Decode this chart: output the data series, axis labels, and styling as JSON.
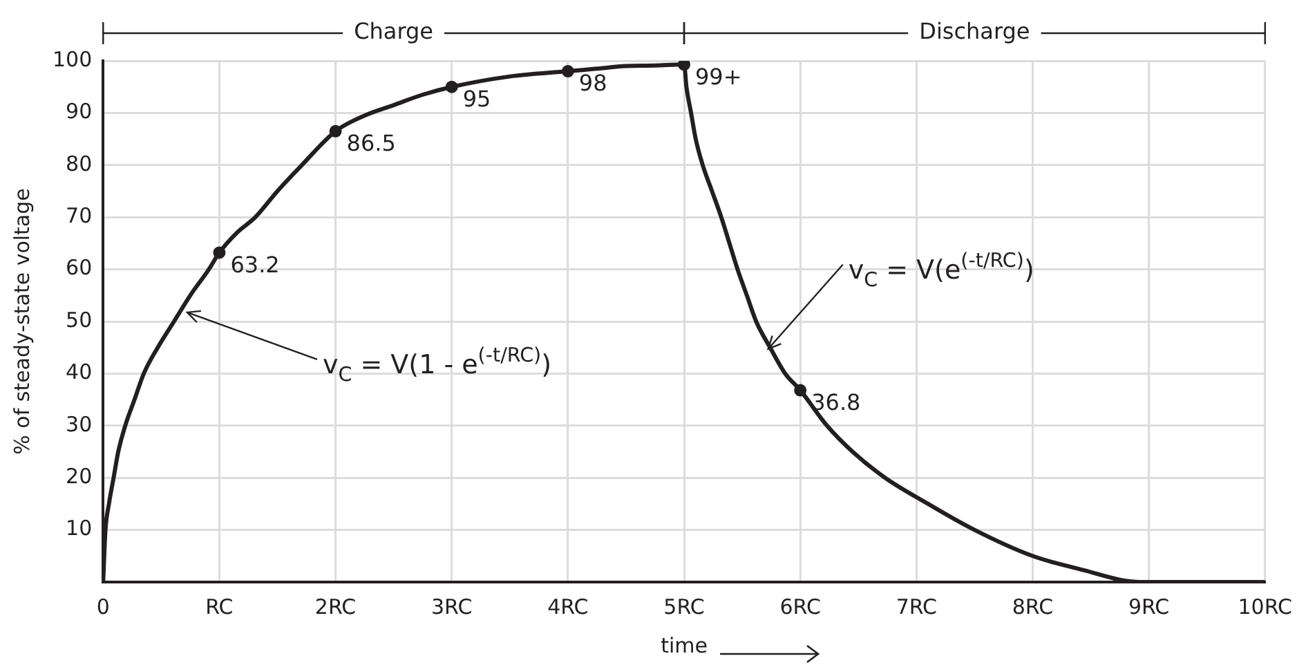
{
  "chart_data": {
    "type": "line",
    "xlabel": "time",
    "ylabel": "% of steady-state voltage",
    "xlim": [
      0,
      10
    ],
    "xticks": [
      0,
      {
        "value": 1,
        "label": "RC"
      },
      {
        "value": 2,
        "label": "2RC"
      },
      {
        "value": 3,
        "label": "3RC"
      },
      {
        "value": 4,
        "label": "4RC"
      },
      {
        "value": 5,
        "label": "5RC"
      },
      {
        "value": 6,
        "label": "6RC"
      },
      {
        "value": 7,
        "label": "7RC"
      },
      {
        "value": 8,
        "label": "8RC"
      },
      {
        "value": 9,
        "label": "9RC"
      },
      {
        "value": 10,
        "label": "10RC"
      }
    ],
    "ylim": [
      0,
      100
    ],
    "yticks": [
      10,
      20,
      30,
      40,
      50,
      60,
      70,
      80,
      90,
      100
    ],
    "grid": true,
    "legend": false,
    "series": [
      {
        "type": "line",
        "color": "#231f20",
        "marker": "none",
        "x": [
          0,
          0.02,
          0.05,
          0.09,
          0.13,
          0.19,
          0.27,
          0.35,
          0.47,
          0.61,
          0.75,
          0.91,
          1,
          1.15,
          1.31,
          1.5,
          1.71,
          2,
          2.25,
          2.5,
          2.75,
          3,
          3.5,
          4,
          4.25,
          4.5,
          4.75,
          5,
          5.02,
          5.06,
          5.1,
          5.16,
          5.24,
          5.32,
          5.39,
          5.46,
          5.54,
          5.62,
          5.74,
          5.87,
          6,
          6.23,
          6.45,
          6.73,
          7.1,
          7.5,
          8,
          8.4,
          8.93,
          9.5,
          10
        ],
        "values": [
          0,
          10,
          15,
          20,
          25,
          30,
          35,
          40,
          45,
          50,
          55,
          60,
          63.2,
          67,
          70,
          75,
          80,
          86.5,
          89.5,
          91.5,
          93.5,
          95,
          97,
          98,
          98.5,
          99,
          99.1,
          99.3,
          95,
          90,
          85,
          80,
          75,
          70,
          65,
          60,
          55,
          50,
          45,
          40,
          36.8,
          30,
          25,
          20,
          15,
          10,
          5,
          2.5,
          0,
          0,
          0
        ]
      },
      {
        "type": "scatter",
        "color": "#231f20",
        "marker": "circle",
        "x": [
          1,
          2,
          3,
          4,
          5,
          6
        ],
        "values": [
          63.2,
          86.5,
          95,
          98,
          99.3,
          36.8
        ],
        "value_labels": [
          "63.2",
          "86.5",
          "95",
          "98",
          "99+",
          "36.8"
        ]
      }
    ],
    "annotations": [
      "Charge",
      "Discharge",
      {
        "text": "v$_{C}$ = V(1 - e$^{(-t/RC)}$)",
        "x": 0.7,
        "y": 52
      },
      {
        "text": "v$_{C}$ = V(e$^{(-t/RC)}$)",
        "x": 5.7,
        "y": 45
      }
    ]
  }
}
